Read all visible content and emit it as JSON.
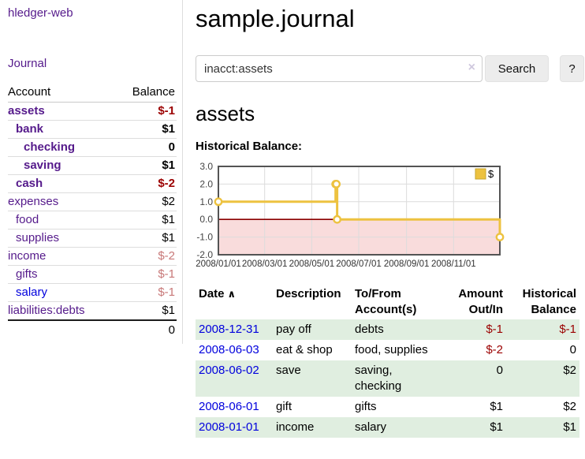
{
  "colors": {
    "link_purple": "#551a8b",
    "link_blue": "#0000dd",
    "negative_strong": "#9b0000",
    "negative_soft": "#c87878",
    "row_green": "#e0eee0",
    "series_gold": "#edc240",
    "negative_region_pink": "#f9dcdc",
    "zero_line_maroon": "#8b0000"
  },
  "sidebar": {
    "brand": "hledger-web",
    "journal_link": "Journal",
    "accounts": {
      "header_account": "Account",
      "header_balance": "Balance",
      "rows": [
        {
          "account": "assets",
          "balance": "$-1",
          "indent": 0,
          "bold": true,
          "neg": "strong"
        },
        {
          "account": "bank",
          "balance": "$1",
          "indent": 1,
          "bold": true,
          "neg": "none"
        },
        {
          "account": "checking",
          "balance": "0",
          "indent": 2,
          "bold": true,
          "neg": "none"
        },
        {
          "account": "saving",
          "balance": "$1",
          "indent": 2,
          "bold": true,
          "neg": "none"
        },
        {
          "account": "cash",
          "balance": "$-2",
          "indent": 1,
          "bold": true,
          "neg": "strong"
        },
        {
          "account": "expenses",
          "balance": "$2",
          "indent": 0,
          "bold": false,
          "neg": "none"
        },
        {
          "account": "food",
          "balance": "$1",
          "indent": 1,
          "bold": false,
          "neg": "none"
        },
        {
          "account": "supplies",
          "balance": "$1",
          "indent": 1,
          "bold": false,
          "neg": "none"
        },
        {
          "account": "income",
          "balance": "$-2",
          "indent": 0,
          "bold": false,
          "neg": "soft"
        },
        {
          "account": "gifts",
          "balance": "$-1",
          "indent": 1,
          "bold": false,
          "neg": "soft"
        },
        {
          "account": "salary",
          "balance": "$-1",
          "indent": 1,
          "bold": false,
          "neg": "soft",
          "link_color": "blue"
        },
        {
          "account": "liabilities:debts",
          "balance": "$1",
          "indent": 0,
          "bold": false,
          "neg": "none"
        }
      ],
      "total": "0"
    }
  },
  "main": {
    "title": "sample.journal",
    "search": {
      "value": "inacct:assets",
      "button_label": "Search",
      "help_label": "?"
    },
    "account_heading": "assets",
    "chart_label": "Historical Balance:",
    "register": {
      "headers": {
        "date": "Date",
        "description": "Description",
        "accounts": "To/From Account(s)",
        "amount": "Amount Out/In",
        "balance": "Historical Balance"
      },
      "rows": [
        {
          "date": "2008-12-31",
          "description": "pay off",
          "accounts": "debts",
          "amount": "$-1",
          "amount_neg": true,
          "balance": "$-1",
          "balance_neg": true
        },
        {
          "date": "2008-06-03",
          "description": "eat & shop",
          "accounts": "food, supplies",
          "amount": "$-2",
          "amount_neg": true,
          "balance": "0",
          "balance_neg": false
        },
        {
          "date": "2008-06-02",
          "description": "save",
          "accounts": "saving, checking",
          "amount": "0",
          "amount_neg": false,
          "balance": "$2",
          "balance_neg": false
        },
        {
          "date": "2008-06-01",
          "description": "gift",
          "accounts": "gifts",
          "amount": "$1",
          "amount_neg": false,
          "balance": "$2",
          "balance_neg": false
        },
        {
          "date": "2008-01-01",
          "description": "income",
          "accounts": "salary",
          "amount": "$1",
          "amount_neg": false,
          "balance": "$1",
          "balance_neg": false
        }
      ]
    }
  },
  "icons": {
    "sort_ascending": "∧",
    "clear_search": "×"
  },
  "chart_data": {
    "type": "line",
    "style": "steps",
    "title": "Historical Balance:",
    "x_range": [
      "2008/01/01",
      "2008/12/31"
    ],
    "ylim": [
      -2.0,
      3.0
    ],
    "yticks": [
      3.0,
      2.0,
      1.0,
      0.0,
      -1.0,
      -2.0
    ],
    "xticks": [
      "2008/01/01",
      "2008/03/01",
      "2008/05/01",
      "2008/07/01",
      "2008/09/01",
      "2008/11/01"
    ],
    "grid": true,
    "legend_position": "top-right",
    "series": [
      {
        "name": "$",
        "color": "#edc240",
        "points": [
          {
            "date": "2008/01/01",
            "value": 1
          },
          {
            "date": "2008/06/01",
            "value": 2
          },
          {
            "date": "2008/06/02",
            "value": 2
          },
          {
            "date": "2008/06/03",
            "value": 0
          },
          {
            "date": "2008/12/31",
            "value": -1
          }
        ]
      }
    ],
    "negative_region_color": "#f9dcdc",
    "zero_line_color": "#8b0000"
  }
}
